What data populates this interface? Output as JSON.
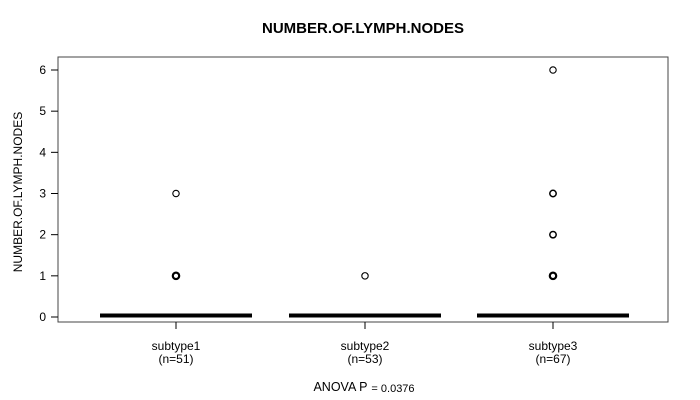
{
  "chart_data": {
    "type": "boxplot",
    "title": "NUMBER.OF.LYMPH.NODES",
    "ylabel": "NUMBER.OF.LYMPH.NODES",
    "xlabel": "",
    "annotation": "ANOVA P",
    "annotation_value": "= 0.0376",
    "ylim": [
      0,
      6
    ],
    "yticks": [
      0,
      1,
      2,
      3,
      4,
      5,
      6
    ],
    "grid": false,
    "legend": "none",
    "groups": [
      {
        "label": "subtype1",
        "sublabel": "(n=51)",
        "n": 51,
        "median": 0,
        "q1": 0,
        "q3": 0,
        "whisker_low": 0,
        "whisker_high": 0,
        "outliers": [
          {
            "value": 3,
            "weight": "light"
          },
          {
            "value": 1,
            "weight": "heavy"
          }
        ]
      },
      {
        "label": "subtype2",
        "sublabel": "(n=53)",
        "n": 53,
        "median": 0,
        "q1": 0,
        "q3": 0,
        "whisker_low": 0,
        "whisker_high": 0,
        "outliers": [
          {
            "value": 1,
            "weight": "light"
          }
        ]
      },
      {
        "label": "subtype3",
        "sublabel": "(n=67)",
        "n": 67,
        "median": 0,
        "q1": 0,
        "q3": 0,
        "whisker_low": 0,
        "whisker_high": 0,
        "outliers": [
          {
            "value": 6,
            "weight": "light"
          },
          {
            "value": 3,
            "weight": "medium"
          },
          {
            "value": 2,
            "weight": "medium"
          },
          {
            "value": 1,
            "weight": "heavy"
          }
        ]
      }
    ],
    "colors": {
      "foreground": "#000000",
      "background": "#ffffff",
      "plot_border": "#444444"
    }
  }
}
